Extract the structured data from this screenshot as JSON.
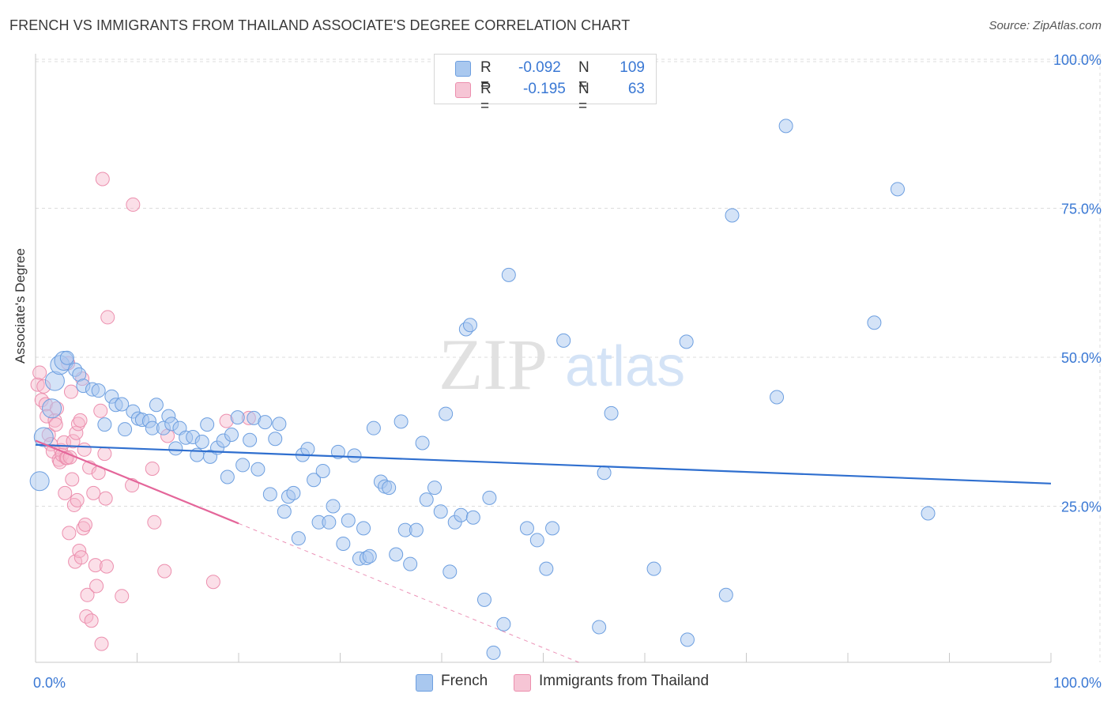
{
  "header": {
    "title": "FRENCH VS IMMIGRANTS FROM THAILAND ASSOCIATE'S DEGREE CORRELATION CHART",
    "source": "Source: ZipAtlas.com"
  },
  "legend_top": {
    "rows": [
      {
        "r_label": "R =",
        "r_value": "-0.092",
        "n_label": "N =",
        "n_value": "109"
      },
      {
        "r_label": "R =",
        "r_value": "-0.195",
        "n_label": "N =",
        "n_value": "63"
      }
    ]
  },
  "legend_bottom": {
    "items": [
      {
        "label": "French"
      },
      {
        "label": "Immigrants from Thailand"
      }
    ]
  },
  "watermark": {
    "zip": "ZIP",
    "atlas": "atlas"
  },
  "colors": {
    "blue_fill": "#a9c8ef",
    "blue_stroke": "#6d9fe0",
    "blue_line": "#2f6fcf",
    "pink_fill": "#f6b8cc",
    "pink_stroke": "#ec8fae",
    "pink_line": "#e4669a",
    "axis_text": "#3a78d4",
    "grid": "#dcdcdc"
  },
  "chart_data": {
    "type": "scatter",
    "title": "FRENCH VS IMMIGRANTS FROM THAILAND ASSOCIATE'S DEGREE CORRELATION CHART",
    "xlabel": "",
    "ylabel": "Associate's Degree",
    "xlim": [
      0,
      100
    ],
    "ylim": [
      0,
      102
    ],
    "x_tick_labels": [
      "0.0%",
      "100.0%"
    ],
    "y_ticks": [
      25,
      50,
      75,
      100
    ],
    "y_tick_labels": [
      "25.0%",
      "50.0%",
      "75.0%",
      "100.0%"
    ],
    "grid": true,
    "series": [
      {
        "name": "French",
        "r": -0.092,
        "n": 109,
        "trend": {
          "x0": 0,
          "y0": 36.5,
          "x1": 100,
          "y1": 30.0
        },
        "points": [
          [
            0.4,
            30.4
          ],
          [
            0.8,
            37.8
          ],
          [
            1.6,
            42.6
          ],
          [
            1.9,
            47.2
          ],
          [
            2.4,
            49.9
          ],
          [
            2.8,
            50.6
          ],
          [
            3.1,
            51.1
          ],
          [
            3.9,
            49.1
          ],
          [
            4.3,
            48.3
          ],
          [
            4.7,
            46.4
          ],
          [
            5.6,
            45.8
          ],
          [
            6.2,
            45.6
          ],
          [
            6.8,
            39.9
          ],
          [
            7.5,
            44.6
          ],
          [
            7.9,
            43.2
          ],
          [
            8.5,
            43.3
          ],
          [
            8.8,
            39.1
          ],
          [
            9.6,
            42.1
          ],
          [
            10.1,
            40.9
          ],
          [
            10.5,
            40.7
          ],
          [
            11.2,
            40.5
          ],
          [
            11.5,
            39.3
          ],
          [
            11.9,
            43.2
          ],
          [
            12.6,
            39.3
          ],
          [
            13.1,
            41.3
          ],
          [
            13.4,
            40.0
          ],
          [
            13.8,
            35.9
          ],
          [
            14.2,
            39.3
          ],
          [
            14.8,
            37.7
          ],
          [
            15.5,
            37.8
          ],
          [
            15.9,
            34.8
          ],
          [
            16.4,
            37.0
          ],
          [
            16.9,
            39.9
          ],
          [
            17.2,
            34.5
          ],
          [
            17.9,
            36.0
          ],
          [
            18.5,
            37.2
          ],
          [
            18.9,
            31.1
          ],
          [
            19.3,
            38.2
          ],
          [
            19.9,
            41.1
          ],
          [
            20.4,
            33.1
          ],
          [
            21.1,
            37.3
          ],
          [
            21.5,
            41.0
          ],
          [
            21.9,
            32.4
          ],
          [
            22.6,
            40.3
          ],
          [
            23.1,
            28.2
          ],
          [
            23.6,
            37.5
          ],
          [
            24.0,
            40.0
          ],
          [
            24.5,
            25.3
          ],
          [
            24.9,
            27.8
          ],
          [
            25.4,
            28.4
          ],
          [
            25.9,
            20.8
          ],
          [
            26.3,
            34.8
          ],
          [
            26.8,
            35.8
          ],
          [
            27.4,
            30.6
          ],
          [
            27.9,
            23.5
          ],
          [
            28.3,
            32.1
          ],
          [
            28.9,
            23.5
          ],
          [
            29.3,
            26.2
          ],
          [
            29.8,
            35.3
          ],
          [
            30.3,
            19.9
          ],
          [
            30.8,
            23.8
          ],
          [
            31.4,
            34.7
          ],
          [
            31.9,
            17.4
          ],
          [
            32.3,
            22.5
          ],
          [
            32.6,
            17.5
          ],
          [
            32.9,
            17.8
          ],
          [
            33.3,
            39.3
          ],
          [
            34.0,
            30.3
          ],
          [
            34.4,
            29.5
          ],
          [
            34.8,
            29.3
          ],
          [
            35.5,
            18.1
          ],
          [
            36.0,
            40.4
          ],
          [
            36.4,
            22.2
          ],
          [
            36.9,
            16.5
          ],
          [
            37.5,
            22.2
          ],
          [
            38.1,
            36.8
          ],
          [
            38.5,
            27.3
          ],
          [
            39.3,
            29.3
          ],
          [
            39.9,
            25.3
          ],
          [
            40.4,
            41.7
          ],
          [
            40.8,
            15.2
          ],
          [
            41.3,
            23.5
          ],
          [
            41.9,
            24.7
          ],
          [
            42.4,
            55.9
          ],
          [
            42.8,
            56.6
          ],
          [
            43.1,
            24.3
          ],
          [
            44.2,
            10.5
          ],
          [
            44.7,
            27.6
          ],
          [
            45.1,
            1.6
          ],
          [
            46.1,
            6.4
          ],
          [
            46.6,
            65.0
          ],
          [
            48.4,
            22.5
          ],
          [
            49.4,
            20.5
          ],
          [
            50.3,
            15.7
          ],
          [
            50.9,
            22.5
          ],
          [
            52.0,
            54.0
          ],
          [
            55.5,
            5.9
          ],
          [
            56.0,
            31.8
          ],
          [
            56.7,
            41.8
          ],
          [
            60.9,
            15.7
          ],
          [
            64.1,
            53.8
          ],
          [
            64.2,
            3.8
          ],
          [
            68.0,
            11.3
          ],
          [
            68.6,
            75.0
          ],
          [
            73.0,
            44.5
          ],
          [
            73.9,
            90.0
          ],
          [
            82.6,
            57.0
          ],
          [
            84.9,
            79.4
          ],
          [
            87.9,
            25.0
          ]
        ]
      },
      {
        "name": "Immigrants from Thailand",
        "r": -0.195,
        "n": 63,
        "trend": {
          "x0": 0,
          "y0": 37.2,
          "x1": 20,
          "y1": 23.3
        },
        "trend_extension": {
          "x0": 20,
          "y0": 23.3,
          "x1": 53.5,
          "y1": 0
        },
        "points": [
          [
            0.2,
            46.6
          ],
          [
            0.4,
            48.6
          ],
          [
            0.6,
            44.0
          ],
          [
            0.8,
            46.3
          ],
          [
            1.0,
            43.3
          ],
          [
            1.1,
            41.3
          ],
          [
            1.3,
            38.2
          ],
          [
            1.5,
            36.6
          ],
          [
            1.7,
            35.4
          ],
          [
            1.9,
            40.6
          ],
          [
            2.0,
            39.9
          ],
          [
            2.1,
            42.6
          ],
          [
            2.3,
            34.0
          ],
          [
            2.4,
            33.6
          ],
          [
            2.5,
            35.6
          ],
          [
            2.6,
            34.8
          ],
          [
            2.8,
            36.9
          ],
          [
            2.9,
            28.4
          ],
          [
            3.0,
            34.3
          ],
          [
            3.1,
            34.3
          ],
          [
            3.2,
            50.2
          ],
          [
            3.3,
            21.7
          ],
          [
            3.4,
            34.4
          ],
          [
            3.5,
            45.4
          ],
          [
            3.6,
            30.7
          ],
          [
            3.7,
            37.1
          ],
          [
            3.8,
            26.4
          ],
          [
            3.9,
            16.9
          ],
          [
            4.0,
            38.5
          ],
          [
            4.1,
            27.2
          ],
          [
            4.2,
            40.0
          ],
          [
            4.3,
            18.7
          ],
          [
            4.4,
            40.6
          ],
          [
            4.5,
            17.6
          ],
          [
            4.6,
            47.6
          ],
          [
            4.7,
            22.5
          ],
          [
            4.8,
            35.7
          ],
          [
            4.9,
            23.1
          ],
          [
            5.0,
            7.7
          ],
          [
            5.1,
            11.3
          ],
          [
            5.3,
            32.7
          ],
          [
            5.5,
            7.0
          ],
          [
            5.7,
            28.4
          ],
          [
            5.9,
            16.3
          ],
          [
            6.0,
            12.8
          ],
          [
            6.2,
            31.8
          ],
          [
            6.4,
            42.2
          ],
          [
            6.5,
            3.1
          ],
          [
            6.6,
            81.1
          ],
          [
            6.8,
            35.0
          ],
          [
            6.9,
            27.5
          ],
          [
            7.0,
            16.1
          ],
          [
            7.1,
            57.9
          ],
          [
            8.5,
            11.1
          ],
          [
            9.5,
            29.7
          ],
          [
            9.6,
            76.8
          ],
          [
            11.5,
            32.5
          ],
          [
            11.7,
            23.5
          ],
          [
            12.7,
            15.3
          ],
          [
            13.0,
            38.0
          ],
          [
            17.5,
            13.5
          ],
          [
            18.8,
            40.5
          ],
          [
            21.0,
            41.0
          ]
        ]
      }
    ]
  }
}
